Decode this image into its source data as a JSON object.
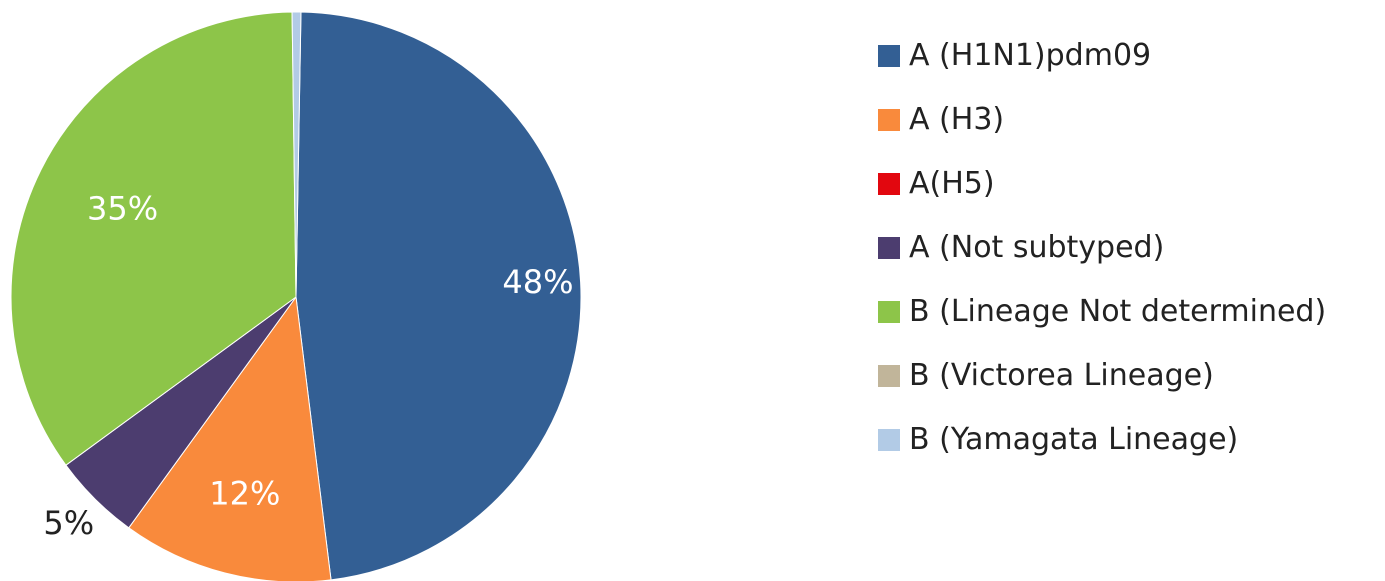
{
  "chart_data": {
    "type": "pie",
    "title": "",
    "series": [
      {
        "values": [
          48,
          12,
          0,
          5,
          35,
          0,
          0.5
        ]
      }
    ],
    "categories": [
      "A (H1N1)pdm09",
      "A (H3)",
      "A(H5)",
      "A (Not subtyped)",
      "B (Lineage Not determined)",
      "B (Victorea Lineage)",
      "B (Yamagata Lineage)"
    ],
    "colors": [
      "#335f94",
      "#f98a3c",
      "#e2070f",
      "#4c3d6f",
      "#8dc549",
      "#c1b59a",
      "#b2cbe6"
    ],
    "data_labels": [
      "48%",
      "12%",
      "",
      "5%",
      "35%",
      "",
      ""
    ],
    "legend_position": "right"
  }
}
